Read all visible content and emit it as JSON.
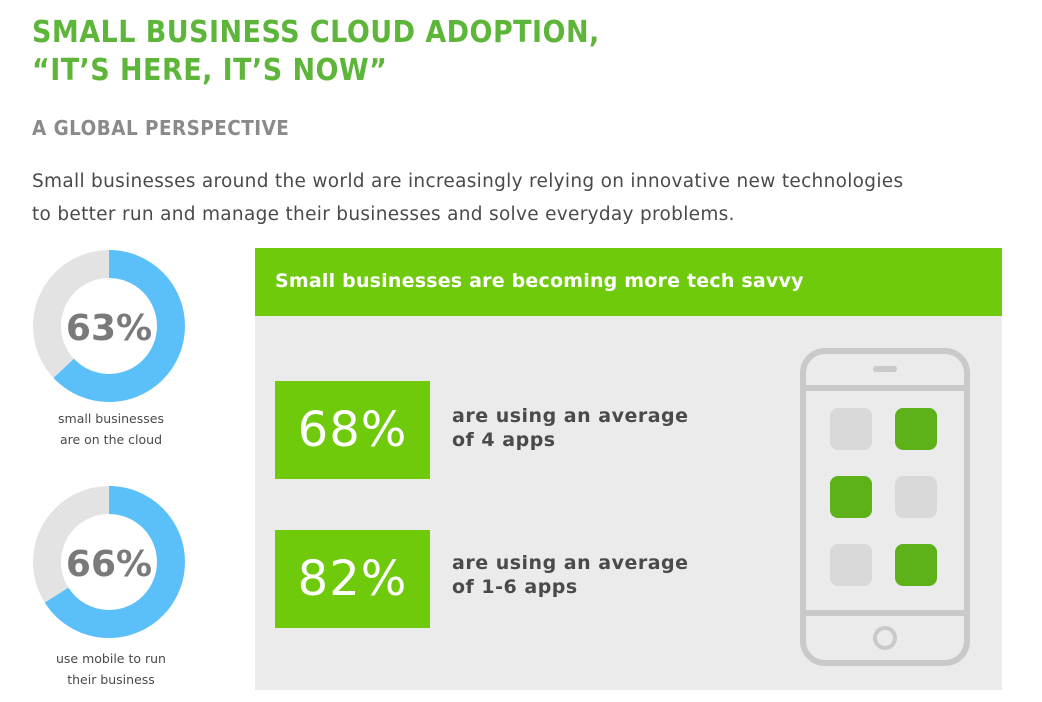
{
  "header": {
    "title_line1": "SMALL BUSINESS CLOUD ADOPTION,",
    "title_line2": "“IT’S HERE, IT’S NOW”",
    "subtitle": "A GLOBAL PERSPECTIVE",
    "intro_line1": "Small businesses around the world are increasingly relying on innovative new technologies",
    "intro_line2": "to better run and manage their businesses and solve everyday problems."
  },
  "donuts": [
    {
      "value_label": "63%",
      "fraction": 0.63,
      "caption_line1": "small businesses",
      "caption_line2": "are on the cloud"
    },
    {
      "value_label": "66%",
      "fraction": 0.66,
      "caption_line1": "use mobile to run",
      "caption_line2": "their business"
    }
  ],
  "panel": {
    "heading": "Small businesses are becoming more tech savvy",
    "stats": [
      {
        "value": "68%",
        "line1": "are using an average",
        "line2": "of 4 apps"
      },
      {
        "value": "82%",
        "line1": "are using an average",
        "line2": "of 1-6 apps"
      }
    ]
  },
  "colors": {
    "title_green": "#5db53a",
    "accent_green": "#6fca0c",
    "donut_blue": "#5bc0fa",
    "donut_track": "#e3e3e3",
    "panel_gray": "#ebebeb",
    "app_green": "#5db21a",
    "app_gray": "#d9d9d9"
  },
  "icons": {
    "phone": "smartphone-icon"
  }
}
